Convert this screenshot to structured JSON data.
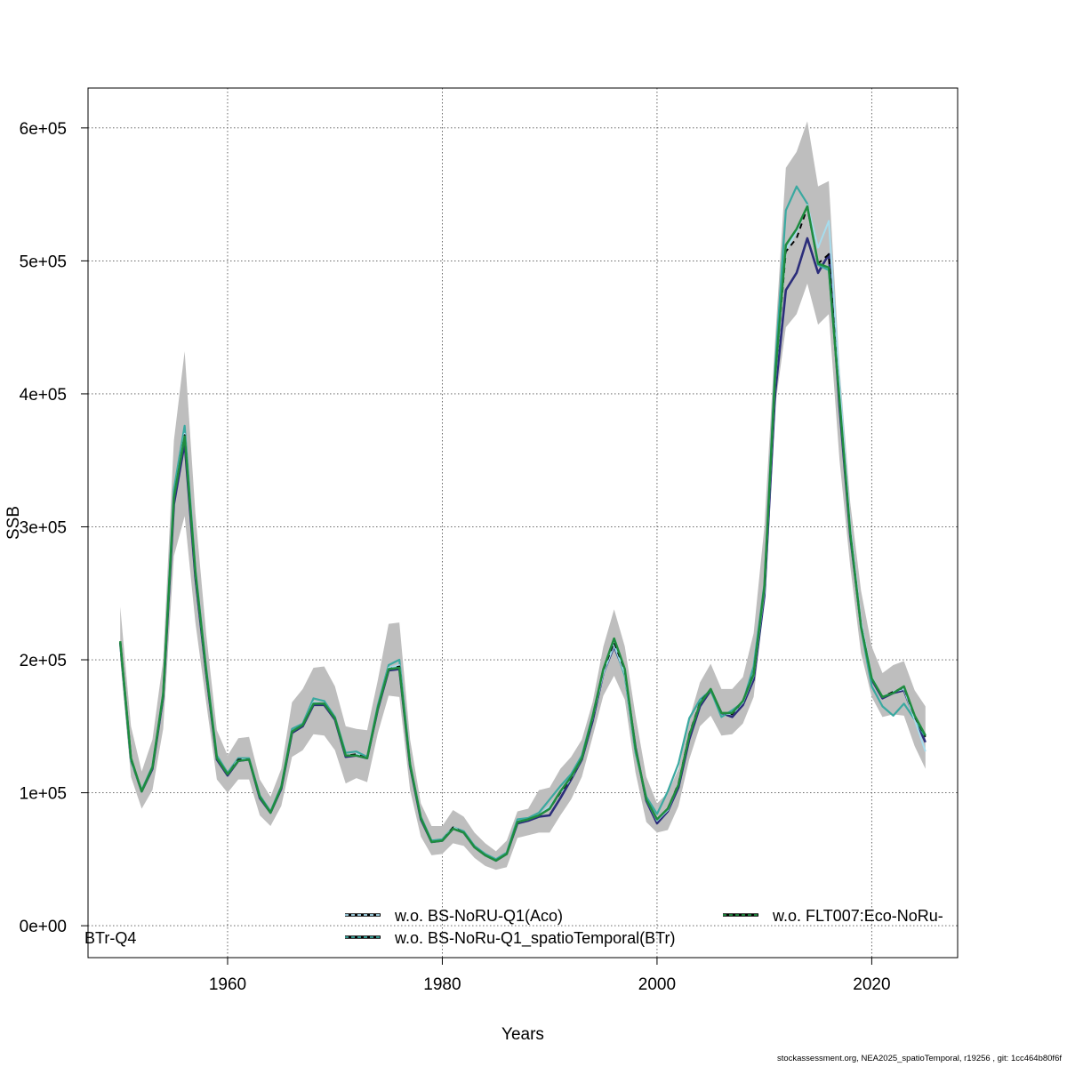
{
  "chart_data": {
    "type": "line",
    "xlabel": "Years",
    "ylabel": "SSB",
    "xlim": [
      1947,
      2028
    ],
    "ylim": [
      -24000,
      630000
    ],
    "xticks": [
      1960,
      1980,
      2000,
      2020
    ],
    "yticks": [
      0,
      100000,
      200000,
      300000,
      400000,
      500000,
      600000
    ],
    "ytick_labels": [
      "0e+00",
      "1e+05",
      "2e+05",
      "3e+05",
      "4e+05",
      "5e+05",
      "6e+05"
    ],
    "grid": true,
    "legend_position": "bottom",
    "x": [
      1950,
      1951,
      1952,
      1953,
      1954,
      1955,
      1956,
      1957,
      1958,
      1959,
      1960,
      1961,
      1962,
      1963,
      1964,
      1965,
      1966,
      1967,
      1968,
      1969,
      1970,
      1971,
      1972,
      1973,
      1974,
      1975,
      1976,
      1977,
      1978,
      1979,
      1980,
      1981,
      1982,
      1983,
      1984,
      1985,
      1986,
      1987,
      1988,
      1989,
      1990,
      1991,
      1992,
      1993,
      1994,
      1995,
      1996,
      1997,
      1998,
      1999,
      2000,
      2001,
      2002,
      2003,
      2004,
      2005,
      2006,
      2007,
      2008,
      2009,
      2010,
      2011,
      2012,
      2013,
      2014,
      2015,
      2016,
      2017,
      2018,
      2019,
      2020,
      2021,
      2022,
      2023,
      2024,
      2025
    ],
    "band": {
      "color": "#bebebe",
      "upper": [
        240000,
        150000,
        116000,
        140000,
        200000,
        365000,
        432000,
        310000,
        220000,
        147000,
        128000,
        141000,
        142000,
        110000,
        97000,
        118000,
        168000,
        178000,
        194000,
        195000,
        180000,
        150000,
        148000,
        147000,
        185000,
        227000,
        228000,
        140000,
        92000,
        75000,
        75000,
        87000,
        82000,
        70000,
        62000,
        56000,
        64000,
        86000,
        88000,
        102000,
        104000,
        118000,
        127000,
        140000,
        168000,
        210000,
        238000,
        210000,
        158000,
        112000,
        92000,
        100000,
        118000,
        155000,
        183000,
        197000,
        178000,
        178000,
        187000,
        220000,
        300000,
        440000,
        570000,
        582000,
        605000,
        556000,
        560000,
        420000,
        318000,
        252000,
        210000,
        190000,
        196000,
        199000,
        177000,
        165000
      ],
      "lower": [
        200000,
        112000,
        88000,
        102000,
        148000,
        278000,
        308000,
        228000,
        168000,
        110000,
        100000,
        110000,
        110000,
        83000,
        75000,
        90000,
        127000,
        132000,
        144000,
        143000,
        132000,
        107000,
        111000,
        108000,
        145000,
        173000,
        172000,
        102000,
        67000,
        53000,
        54000,
        62000,
        60000,
        51000,
        45000,
        42000,
        44000,
        66000,
        68000,
        70000,
        70000,
        83000,
        95000,
        112000,
        142000,
        173000,
        188000,
        170000,
        115000,
        78000,
        70000,
        72000,
        90000,
        125000,
        150000,
        158000,
        143000,
        144000,
        152000,
        172000,
        245000,
        390000,
        450000,
        460000,
        483000,
        452000,
        460000,
        350000,
        270000,
        205000,
        172000,
        157000,
        159000,
        158000,
        135000,
        118000
      ]
    },
    "series": [
      {
        "color": "#2b2d7a",
        "dash": "",
        "width": 2.6,
        "values": [
          213000,
          125000,
          101000,
          118000,
          172000,
          317000,
          363000,
          262000,
          190000,
          125000,
          113000,
          124000,
          125000,
          96000,
          85000,
          103000,
          145000,
          150000,
          166000,
          166000,
          155000,
          127000,
          128000,
          126000,
          163000,
          192000,
          193000,
          120000,
          80000,
          63000,
          64000,
          73000,
          70000,
          59000,
          53000,
          49000,
          54000,
          77000,
          79000,
          82000,
          83000,
          96000,
          110000,
          125000,
          154000,
          190000,
          210000,
          190000,
          134000,
          94000,
          77000,
          86000,
          104000,
          140000,
          165000,
          177000,
          160000,
          157000,
          166000,
          185000,
          248000,
          400000,
          478000,
          491000,
          517000,
          491000,
          505000,
          390000,
          293000,
          226000,
          185000,
          171000,
          175000,
          177000,
          156000,
          138000
        ]
      },
      {
        "color": "#3aa9a0",
        "dash": "",
        "width": 2.2,
        "values": [
          212000,
          124000,
          102000,
          120000,
          175000,
          328000,
          376000,
          268000,
          194000,
          128000,
          115000,
          126000,
          126000,
          98000,
          86000,
          105000,
          148000,
          152000,
          171000,
          169000,
          157000,
          130000,
          131000,
          127000,
          166000,
          196000,
          200000,
          122000,
          82000,
          64000,
          65000,
          74000,
          71000,
          60000,
          54000,
          50000,
          55000,
          80000,
          81000,
          85000,
          95000,
          105000,
          114000,
          128000,
          158000,
          193000,
          212000,
          188000,
          130000,
          97000,
          84000,
          101000,
          122000,
          156000,
          170000,
          177000,
          157000,
          162000,
          168000,
          195000,
          257000,
          420000,
          538000,
          556000,
          543000,
          497000,
          493000,
          395000,
          295000,
          224000,
          180000,
          165000,
          158000,
          167000,
          155000,
          142000
        ]
      },
      {
        "color": "#a6dced",
        "dash": "",
        "width": 2.0,
        "values": [
          212000,
          125000,
          101000,
          119000,
          173000,
          322000,
          370000,
          265000,
          191000,
          126000,
          114000,
          125000,
          125000,
          97000,
          85000,
          104000,
          146000,
          151000,
          168000,
          167000,
          156000,
          128000,
          129000,
          126000,
          164000,
          194000,
          196000,
          121000,
          81000,
          63000,
          64000,
          74000,
          70000,
          59000,
          53000,
          49000,
          54000,
          78000,
          80000,
          83000,
          90000,
          100000,
          111000,
          126000,
          156000,
          190000,
          211000,
          190000,
          132000,
          95000,
          79000,
          87000,
          106000,
          143000,
          167000,
          178000,
          160000,
          159000,
          168000,
          188000,
          252000,
          410000,
          508000,
          522000,
          542000,
          510000,
          530000,
          408000,
          300000,
          229000,
          187000,
          172000,
          176000,
          178000,
          155000,
          131000
        ]
      },
      {
        "color": "#000000",
        "dash": "6,5",
        "width": 1.9,
        "values": [
          212000,
          125000,
          101000,
          119000,
          173000,
          322000,
          369000,
          265000,
          191000,
          126000,
          114000,
          125000,
          125000,
          97000,
          85000,
          104000,
          146000,
          151000,
          167000,
          167000,
          156000,
          128000,
          129000,
          126000,
          164000,
          193000,
          195000,
          121000,
          81000,
          63000,
          64000,
          74000,
          70000,
          59000,
          53000,
          49000,
          54000,
          78000,
          80000,
          83000,
          88000,
          100000,
          111000,
          126000,
          156000,
          192000,
          213000,
          192000,
          133000,
          95000,
          80000,
          88000,
          107000,
          144000,
          168000,
          178000,
          160000,
          159000,
          169000,
          190000,
          255000,
          412000,
          507000,
          517000,
          540000,
          498000,
          505000,
          395000,
          296000,
          226000,
          186000,
          172000,
          176000,
          179000,
          157000,
          142000
        ]
      },
      {
        "color": "#1f8c3f",
        "dash": "",
        "width": 2.5,
        "values": [
          214000,
          126000,
          101000,
          119000,
          174000,
          322000,
          368000,
          266000,
          192000,
          126000,
          114000,
          124000,
          125000,
          97000,
          85000,
          104000,
          146000,
          151000,
          167000,
          167000,
          156000,
          128000,
          128000,
          126000,
          164000,
          193000,
          194000,
          121000,
          81000,
          63000,
          64000,
          73000,
          70000,
          59000,
          53000,
          49000,
          54000,
          78000,
          80000,
          83000,
          88000,
          101000,
          112000,
          126000,
          157000,
          193000,
          216000,
          193000,
          133000,
          95000,
          80000,
          88000,
          106000,
          143000,
          167000,
          178000,
          160000,
          160000,
          169000,
          189000,
          255000,
          413000,
          512000,
          524000,
          541000,
          498000,
          495000,
          395000,
          295000,
          225000,
          186000,
          172000,
          175000,
          180000,
          158000,
          143000
        ]
      }
    ],
    "legend": [
      {
        "label": "w.o. BS-NoRU-Q1(Aco)",
        "color": "#a6dced",
        "dash": "4,3"
      },
      {
        "label": "w.o. BS-NoRu-Q1_spatioTemporal(BTr)",
        "color": "#3aa9a0",
        "dash": "4,3"
      },
      {
        "label": "w.o. FLT007:Eco-NoRu-",
        "color": "#1f8c3f",
        "dash": "4,3"
      },
      {
        "label": "BTr-Q4",
        "color": "",
        "dash": ""
      }
    ]
  },
  "footer": "stockassessment.org, NEA2025_spatioTemporal, r19256 , git: 1cc464b80f6f"
}
